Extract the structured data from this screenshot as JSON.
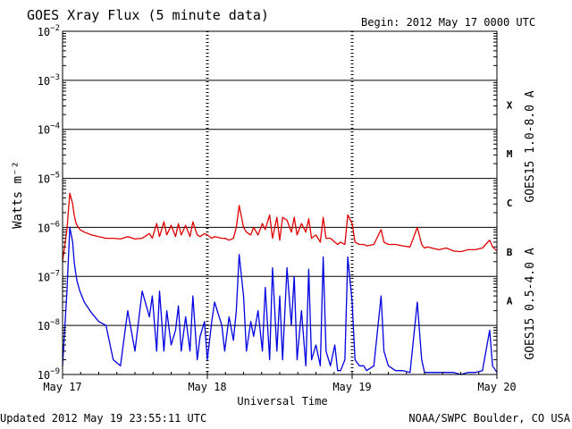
{
  "header": {
    "title": "GOES Xray Flux (5 minute data)",
    "begin": "Begin:  2012 May 17 0000 UTC"
  },
  "footer": {
    "updated": "Updated 2012 May 19 23:55:11 UTC",
    "credit": "NOAA/SWPC Boulder, CO USA"
  },
  "colors": {
    "long": "#e00000",
    "short": "#0000e0",
    "grid": "#000000"
  },
  "chart_data": {
    "type": "line",
    "title": "GOES Xray Flux (5 minute data)",
    "xlabel": "Universal Time",
    "ylabel": "Watts m⁻²",
    "yscale": "log",
    "ylim": [
      1e-09,
      0.01
    ],
    "xlim_days": [
      0,
      3
    ],
    "x_ticks": [
      "May 17",
      "May 18",
      "May 19",
      "May 20"
    ],
    "y_ticks": [
      {
        "base": "10",
        "exp": "−2"
      },
      {
        "base": "10",
        "exp": "−3"
      },
      {
        "base": "10",
        "exp": "−4"
      },
      {
        "base": "10",
        "exp": "−5"
      },
      {
        "base": "10",
        "exp": "−6"
      },
      {
        "base": "10",
        "exp": "−7"
      },
      {
        "base": "10",
        "exp": "−8"
      },
      {
        "base": "10",
        "exp": "−9"
      }
    ],
    "flare_classes": [
      "X",
      "M",
      "C",
      "B",
      "A"
    ],
    "grid": true,
    "series": [
      {
        "name": "GOES15 1.0-8.0 A",
        "x": [
          0.0,
          0.03,
          0.05,
          0.07,
          0.08,
          0.09,
          0.1,
          0.12,
          0.15,
          0.2,
          0.25,
          0.3,
          0.35,
          0.4,
          0.45,
          0.5,
          0.55,
          0.6,
          0.62,
          0.65,
          0.67,
          0.7,
          0.72,
          0.75,
          0.78,
          0.8,
          0.82,
          0.85,
          0.88,
          0.9,
          0.93,
          0.95,
          0.98,
          1.0,
          1.03,
          1.05,
          1.1,
          1.12,
          1.15,
          1.18,
          1.2,
          1.22,
          1.25,
          1.27,
          1.3,
          1.32,
          1.35,
          1.38,
          1.4,
          1.43,
          1.45,
          1.48,
          1.5,
          1.52,
          1.55,
          1.58,
          1.6,
          1.62,
          1.65,
          1.68,
          1.7,
          1.72,
          1.75,
          1.78,
          1.8,
          1.82,
          1.85,
          1.88,
          1.9,
          1.92,
          1.95,
          1.97,
          2.0,
          2.02,
          2.05,
          2.08,
          2.1,
          2.15,
          2.2,
          2.22,
          2.25,
          2.3,
          2.35,
          2.4,
          2.45,
          2.48,
          2.5,
          2.52,
          2.55,
          2.6,
          2.65,
          2.7,
          2.75,
          2.8,
          2.85,
          2.9,
          2.95,
          2.97,
          3.0
        ],
        "y": [
          2e-07,
          9e-07,
          5e-06,
          3e-06,
          1.8e-06,
          1.3e-06,
          1.1e-06,
          9e-07,
          8e-07,
          7e-07,
          6.5e-07,
          6e-07,
          6e-07,
          5.8e-07,
          6.5e-07,
          5.8e-07,
          6e-07,
          7.5e-07,
          6e-07,
          1.2e-06,
          6.5e-07,
          1.3e-06,
          7e-07,
          1.1e-06,
          6.5e-07,
          1.2e-06,
          7e-07,
          1.1e-06,
          6.5e-07,
          1.3e-06,
          7e-07,
          6.5e-07,
          7.5e-07,
          7e-07,
          6e-07,
          6.5e-07,
          6e-07,
          6e-07,
          5.5e-07,
          6e-07,
          1e-06,
          2.8e-06,
          1e-06,
          8e-07,
          7e-07,
          1e-06,
          7e-07,
          1.2e-06,
          9e-07,
          1.8e-06,
          6e-07,
          1.6e-06,
          5.5e-07,
          1.6e-06,
          1.4e-06,
          8e-07,
          1.6e-06,
          7e-07,
          1.2e-06,
          8e-07,
          1.5e-06,
          6e-07,
          7e-07,
          5e-07,
          1.6e-06,
          6e-07,
          6e-07,
          5e-07,
          4.5e-07,
          5e-07,
          4.5e-07,
          1.8e-06,
          1.2e-06,
          5e-07,
          4.5e-07,
          4.5e-07,
          4.2e-07,
          4.5e-07,
          9e-07,
          5e-07,
          4.5e-07,
          4.5e-07,
          4.2e-07,
          4e-07,
          1e-06,
          4.5e-07,
          3.8e-07,
          4e-07,
          3.8e-07,
          3.5e-07,
          3.8e-07,
          3.3e-07,
          3.2e-07,
          3.5e-07,
          3.5e-07,
          3.8e-07,
          5.5e-07,
          4e-07,
          3.3e-07
        ]
      },
      {
        "name": "GOES15 0.5-4.0 A",
        "x": [
          0.0,
          0.03,
          0.05,
          0.07,
          0.08,
          0.09,
          0.1,
          0.12,
          0.15,
          0.2,
          0.25,
          0.3,
          0.35,
          0.4,
          0.45,
          0.5,
          0.55,
          0.6,
          0.62,
          0.65,
          0.67,
          0.7,
          0.72,
          0.75,
          0.78,
          0.8,
          0.82,
          0.85,
          0.88,
          0.9,
          0.93,
          0.95,
          0.98,
          1.0,
          1.03,
          1.05,
          1.1,
          1.12,
          1.15,
          1.18,
          1.2,
          1.22,
          1.25,
          1.27,
          1.3,
          1.32,
          1.35,
          1.38,
          1.4,
          1.43,
          1.45,
          1.48,
          1.5,
          1.52,
          1.55,
          1.58,
          1.6,
          1.62,
          1.65,
          1.68,
          1.7,
          1.72,
          1.75,
          1.78,
          1.8,
          1.82,
          1.85,
          1.88,
          1.9,
          1.92,
          1.95,
          1.97,
          2.0,
          2.02,
          2.05,
          2.08,
          2.1,
          2.15,
          2.2,
          2.22,
          2.25,
          2.3,
          2.35,
          2.4,
          2.45,
          2.48,
          2.5,
          2.52,
          2.55,
          2.6,
          2.65,
          2.7,
          2.75,
          2.8,
          2.85,
          2.9,
          2.95,
          2.97,
          3.0
        ],
        "y": [
          1.5e-09,
          5e-08,
          1e-06,
          5e-07,
          2e-07,
          1.2e-07,
          8e-08,
          5e-08,
          3e-08,
          1.8e-08,
          1.2e-08,
          1e-08,
          2e-09,
          1.5e-09,
          2e-08,
          3e-09,
          5e-08,
          1.5e-08,
          4e-08,
          3e-09,
          5e-08,
          3e-09,
          2e-08,
          4e-09,
          8e-09,
          2.5e-08,
          3e-09,
          1.5e-08,
          3e-09,
          4e-08,
          2e-09,
          6e-09,
          1.2e-08,
          2e-09,
          1.2e-08,
          3e-08,
          1e-08,
          3e-09,
          1.5e-08,
          5e-09,
          2e-08,
          2.8e-07,
          4e-08,
          3e-09,
          1.2e-08,
          6e-09,
          2e-08,
          3e-09,
          6e-08,
          2e-09,
          1.5e-07,
          3e-09,
          4e-08,
          2e-09,
          1.5e-07,
          1e-08,
          1e-07,
          2e-09,
          2e-08,
          1.5e-09,
          1.4e-07,
          2e-09,
          4e-09,
          1.5e-09,
          2.5e-07,
          3e-09,
          1.5e-09,
          4e-09,
          1.2e-09,
          1.2e-09,
          2e-09,
          2.5e-07,
          3e-08,
          2e-09,
          1.5e-09,
          1.5e-09,
          1.2e-09,
          1.5e-09,
          4e-08,
          3e-09,
          1.5e-09,
          1.2e-09,
          1.2e-09,
          1.1e-09,
          3e-08,
          2e-09,
          1.1e-09,
          1.1e-09,
          1.1e-09,
          1.1e-09,
          1.1e-09,
          1.1e-09,
          1e-09,
          1.1e-09,
          1.1e-09,
          1.2e-09,
          8e-09,
          1.5e-09,
          1.1e-09
        ]
      }
    ]
  }
}
